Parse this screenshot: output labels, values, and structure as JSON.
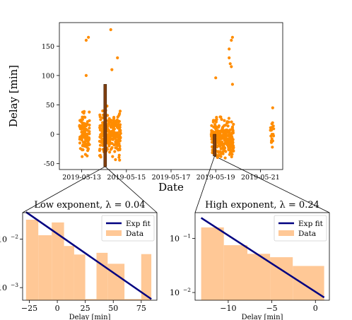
{
  "chart_data": [
    {
      "type": "scatter",
      "xlabel": "Date",
      "ylabel": "Delay [min]",
      "xlim": [
        "2019-05-12",
        "2019-05-22"
      ],
      "ylim": [
        -60,
        190
      ],
      "x_ticks": [
        "2019-05-13",
        "2019-05-15",
        "2019-05-17",
        "2019-05-19",
        "2019-05-21"
      ],
      "y_ticks": [
        -50,
        0,
        50,
        100,
        150
      ],
      "grid": false,
      "point_color": "#ff8c00",
      "highlight_color": "#7f3f10",
      "clusters": [
        {
          "date_from": "2019-05-12.9",
          "date_to": "2019-05-13.35",
          "median_delay": 0,
          "spread": 22,
          "count": 120
        },
        {
          "date_from": "2019-05-13.8",
          "date_to": "2019-05-14.75",
          "median_delay": 2,
          "spread": 24,
          "count": 260
        },
        {
          "date_from": "2019-05-18.8",
          "date_to": "2019-05-19.8",
          "median_delay": -8,
          "spread": 20,
          "count": 280
        },
        {
          "date_from": "2019-05-21.45",
          "date_to": "2019-05-21.6",
          "median_delay": 0,
          "spread": 20,
          "count": 18
        }
      ],
      "outliers": [
        {
          "date": "2019-05-13.2",
          "delay": 160
        },
        {
          "date": "2019-05-13.3",
          "delay": 165
        },
        {
          "date": "2019-05-13.2",
          "delay": 100
        },
        {
          "date": "2019-05-14.3",
          "delay": 178
        },
        {
          "date": "2019-05-14.6",
          "delay": 130
        },
        {
          "date": "2019-05-14.35",
          "delay": 110
        },
        {
          "date": "2019-05-19.75",
          "delay": 165
        },
        {
          "date": "2019-05-19.7",
          "delay": 160
        },
        {
          "date": "2019-05-19.6",
          "delay": 145
        },
        {
          "date": "2019-05-19.6",
          "delay": 130
        },
        {
          "date": "2019-05-19.65",
          "delay": 120
        },
        {
          "date": "2019-05-19.7",
          "delay": 115
        },
        {
          "date": "2019-05-19.0",
          "delay": 96
        },
        {
          "date": "2019-05-19.75",
          "delay": 85
        },
        {
          "date": "2019-05-21.55",
          "delay": 45
        }
      ],
      "highlight_windows": [
        {
          "date": "2019-05-14.05",
          "delay_from": -55,
          "delay_to": 85
        },
        {
          "date": "2019-05-18.95",
          "delay_from": -37,
          "delay_to": 0
        }
      ]
    },
    {
      "type": "bar",
      "title": "Low exponent, λ = 0.04",
      "xlabel": "Delay [min]",
      "ylabel": "",
      "yscale": "log",
      "xlim": [
        -31,
        89
      ],
      "ylim": [
        0.00055,
        0.035
      ],
      "x_ticks": [
        -25,
        0,
        25,
        50,
        75
      ],
      "y_ticks": [
        {
          "value": 0.01,
          "label": "10",
          "exp": "−2"
        },
        {
          "value": 0.001,
          "label": "10",
          "exp": "−3"
        }
      ],
      "bins": [
        {
          "from": -28,
          "to": -17,
          "value": 0.025
        },
        {
          "from": -17,
          "to": -5,
          "value": 0.012
        },
        {
          "from": -5,
          "to": 6,
          "value": 0.022
        },
        {
          "from": 6,
          "to": 15,
          "value": 0.0072
        },
        {
          "from": 15,
          "to": 25,
          "value": 0.0048
        },
        {
          "from": 25,
          "to": 35,
          "value": 0.00058
        },
        {
          "from": 35,
          "to": 45,
          "value": 0.0052
        },
        {
          "from": 45,
          "to": 60,
          "value": 0.0031
        },
        {
          "from": 60,
          "to": 75,
          "value": 0.00058
        },
        {
          "from": 75,
          "to": 84,
          "value": 0.0049
        }
      ],
      "fit": {
        "x": [
          -28,
          84
        ],
        "y": [
          0.036,
          0.00058
        ]
      },
      "legend": {
        "location": "upper right",
        "entries": [
          {
            "label": "Exp fit",
            "kind": "line"
          },
          {
            "label": "Data",
            "kind": "patch"
          }
        ]
      },
      "fit_color": "#000080",
      "bar_color": "#ffc896"
    },
    {
      "type": "bar",
      "title": "High exponent, λ = 0.24",
      "xlabel": "Delay [min]",
      "ylabel": "",
      "yscale": "log",
      "xlim": [
        -13.8,
        1.6
      ],
      "ylim": [
        0.0072,
        0.3
      ],
      "x_ticks": [
        -10,
        -5,
        0
      ],
      "y_ticks": [
        {
          "value": 0.1,
          "label": "10",
          "exp": "−1"
        },
        {
          "value": 0.01,
          "label": "10",
          "exp": "−2"
        }
      ],
      "bins": [
        {
          "from": -13.1,
          "to": -10.5,
          "value": 0.16
        },
        {
          "from": -10.5,
          "to": -7.8,
          "value": 0.075
        },
        {
          "from": -7.8,
          "to": -5.2,
          "value": 0.052
        },
        {
          "from": -5.2,
          "to": -2.6,
          "value": 0.045
        },
        {
          "from": -2.6,
          "to": 1.0,
          "value": 0.031
        }
      ],
      "fit": {
        "x": [
          -13.1,
          1.0
        ],
        "y": [
          0.24,
          0.0081
        ]
      },
      "legend": {
        "location": "upper right",
        "entries": [
          {
            "label": "Exp fit",
            "kind": "line"
          },
          {
            "label": "Data",
            "kind": "patch"
          }
        ]
      },
      "fit_color": "#000080",
      "bar_color": "#ffc896"
    }
  ]
}
